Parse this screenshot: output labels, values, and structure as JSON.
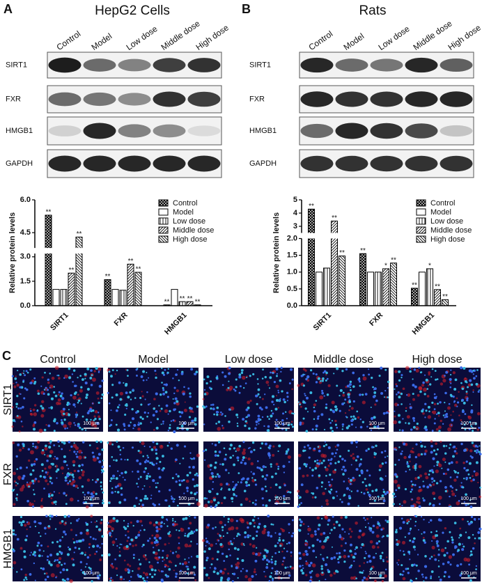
{
  "panels": [
    {
      "label": "A",
      "title": "HepG2 Cells",
      "lanes": [
        "Control",
        "Model",
        "Low dose",
        "Middle dose",
        "High dose"
      ],
      "blots": [
        "SIRT1",
        "FXR",
        "HMGB1",
        "GAPDH"
      ]
    },
    {
      "label": "B",
      "title": "Rats",
      "lanes": [
        "Control",
        "Model",
        "Low dose",
        "Middle dose",
        "High dose"
      ],
      "blots": [
        "SIRT1",
        "FXR",
        "HMGB1",
        "GAPDH"
      ]
    }
  ],
  "chart_data": [
    {
      "type": "bar",
      "ylabel": "Relative protein levels",
      "categories": [
        "SIRT1",
        "FXR",
        "HMGB1"
      ],
      "series": [
        {
          "name": "Control",
          "color": "#000000",
          "values": [
            5.3,
            1.6,
            0.05
          ],
          "significance": [
            "**",
            "**",
            "**"
          ]
        },
        {
          "name": "Model",
          "color": "#000000",
          "values": [
            1.0,
            1.0,
            1.0
          ],
          "significance": [
            null,
            null,
            null
          ]
        },
        {
          "name": "Low dose",
          "color": "#000000",
          "values": [
            1.0,
            0.95,
            0.25
          ],
          "significance": [
            null,
            null,
            "**"
          ]
        },
        {
          "name": "Middle dose",
          "color": "#000000",
          "values": [
            2.0,
            2.55,
            0.25
          ],
          "significance": [
            "**",
            "**",
            "**"
          ]
        },
        {
          "name": "High dose",
          "color": "#000000",
          "values": [
            4.3,
            2.05,
            0.05
          ],
          "significance": [
            "**",
            "**",
            "**"
          ]
        }
      ],
      "ylim": [
        0,
        6
      ],
      "y_break": [
        3.2,
        3.8
      ],
      "yticks": [
        {
          "value": 0,
          "label": "0.0"
        },
        1.5,
        {
          "value": 3,
          "label": "3.0"
        },
        4.5,
        {
          "value": 6,
          "label": "6.0"
        }
      ],
      "legend": "upper right"
    },
    {
      "type": "bar",
      "ylabel": "Relative protein levels",
      "categories": [
        "SIRT1",
        "FXR",
        "HMGB1"
      ],
      "series": [
        {
          "name": "Control",
          "color": "#000000",
          "values": [
            4.3,
            1.55,
            0.52
          ],
          "significance": [
            "**",
            "**",
            "**"
          ]
        },
        {
          "name": "Model",
          "color": "#000000",
          "values": [
            1.0,
            1.0,
            1.0
          ],
          "significance": [
            null,
            null,
            null
          ]
        },
        {
          "name": "Low dose",
          "color": "#000000",
          "values": [
            1.12,
            1.0,
            1.1
          ],
          "significance": [
            null,
            null,
            "*"
          ]
        },
        {
          "name": "Middle dose",
          "color": "#000000",
          "values": [
            3.4,
            1.1,
            0.48
          ],
          "significance": [
            "**",
            "*",
            "**"
          ]
        },
        {
          "name": "High dose",
          "color": "#000000",
          "values": [
            1.48,
            1.27,
            0.18
          ],
          "significance": [
            "**",
            "**",
            "**"
          ]
        }
      ],
      "ylim": [
        0,
        5
      ],
      "y_break": [
        2.0,
        2.5
      ],
      "yticks": [
        {
          "value": 0,
          "label": "0.0"
        },
        0.5,
        {
          "value": 1,
          "label": "1.0"
        },
        1.5,
        {
          "value": 2,
          "label": "2.0"
        },
        3,
        4,
        5
      ],
      "legend": "upper right"
    }
  ],
  "panel_c": {
    "label": "C",
    "columns": [
      "Control",
      "Model",
      "Low dose",
      "Middle dose",
      "High dose"
    ],
    "rows": [
      "SIRT1",
      "FXR",
      "HMGB1"
    ],
    "scale_bar": "100 μm"
  }
}
